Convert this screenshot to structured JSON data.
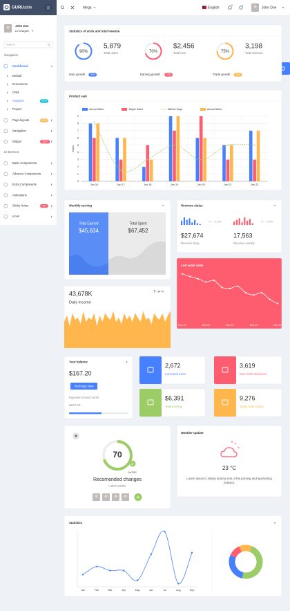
{
  "header": {
    "brand": "GURU",
    "brand_suffix": "able",
    "menu": "Mega",
    "language": "English",
    "user": "John Doe"
  },
  "sidebar": {
    "user_name": "John Doe",
    "user_role": "UI Designer",
    "search": "Search",
    "nav_title": "Navigation",
    "dashboard": "Dashboard",
    "dashboard_items": [
      {
        "label": "Default"
      },
      {
        "label": "Ecommerce"
      },
      {
        "label": "CRM"
      },
      {
        "label": "Analytics",
        "badge": "NEW",
        "badge_color": "#00bcd4"
      },
      {
        "label": "Project"
      }
    ],
    "nav_items": [
      {
        "label": "Page layouts",
        "badge": "NEW",
        "badge_color": "#ffb64d"
      },
      {
        "label": "Navigation"
      },
      {
        "label": "Widget",
        "badge": "100+",
        "badge_color": "#fe5d70"
      }
    ],
    "ui_title": "UI Element",
    "ui_items": [
      {
        "label": "Basic Components"
      },
      {
        "label": "Advance Components"
      },
      {
        "label": "Extra Components"
      },
      {
        "label": "Animations"
      },
      {
        "label": "Sticky Notes",
        "badge": "HOT",
        "badge_color": "#fe5d70"
      },
      {
        "label": "Icons"
      }
    ]
  },
  "stats": {
    "title": "Statistics of visits and total revenue",
    "items": [
      {
        "percent": 90,
        "percent_label": "90%",
        "value": "5,879",
        "label": "Total users",
        "color": "#4680ff"
      },
      {
        "percent": 70,
        "percent_label": "70%",
        "value": "$2,456",
        "label": "Total rent",
        "color": "#fe5d70"
      },
      {
        "percent": 75,
        "percent_label": "75%",
        "value": "3,198",
        "label": "Total revenue",
        "color": "#ffb64d"
      }
    ],
    "footer": [
      {
        "label": "User growth",
        "badge": "29%",
        "color": "#4680ff"
      },
      {
        "label": "Earning growth",
        "badge": "12%",
        "color": "#fe5d70"
      },
      {
        "label": "Trade growth",
        "badge": "10%",
        "color": "#ffb64d"
      }
    ]
  },
  "product_sale": {
    "type": "bar",
    "title": "Product sale",
    "y_label": "Sales",
    "categories": [
      "Jan 16",
      "Jan 17",
      "Jan 18",
      "Jan 19",
      "Jan 20",
      "Jan 21",
      "Jan 22"
    ],
    "series": [
      {
        "name": "Actual Sales",
        "color": "#4680ff",
        "values": [
          8,
          6,
          2,
          9,
          6,
          5,
          7
        ]
      },
      {
        "name": "Target Sales",
        "color": "#fe5d70",
        "values": [
          6,
          3,
          5,
          7,
          9,
          3,
          3
        ]
      },
      {
        "name": "Market Days",
        "color": "#9ccc65",
        "type": "line",
        "dashed": true,
        "values": [
          8.2,
          1.5,
          3,
          5,
          3,
          5,
          5
        ]
      },
      {
        "name": "Actual Sales",
        "color": "#ffb64d",
        "values": [
          8,
          6,
          3,
          9,
          6,
          5,
          7
        ]
      }
    ],
    "ylim": [
      0,
      9
    ],
    "yticks": [
      0,
      1,
      2,
      3,
      4,
      5,
      6,
      7,
      8,
      9
    ],
    "grid": true
  },
  "monthly_earning": {
    "title": "Monthly earning",
    "earned_label": "Total Earned",
    "earned": "$45,634",
    "spent_label": "Total Spent",
    "spent": "$67,452"
  },
  "revenue_status": {
    "title": "Revenue status",
    "daily": {
      "value": "$27,674",
      "label": "Revenue daily",
      "change": "+1.0%",
      "color": "#4680ff",
      "bars": [
        5,
        9,
        6,
        8,
        3,
        6,
        2,
        1
      ]
    },
    "weekly": {
      "value": "17,563",
      "label": "Revenue weekly",
      "change": "-0.9%",
      "color": "#fe5d70",
      "bars": [
        4,
        6,
        8,
        3,
        9,
        5,
        7,
        2
      ]
    },
    "ylim": [
      0,
      10
    ]
  },
  "last_week_sales": {
    "type": "line",
    "title": "Last week sales",
    "categories": [
      "Nov 19",
      null,
      null,
      "Nov 21",
      null,
      null,
      "Nov 23",
      null,
      null,
      "Nov 25",
      null,
      null,
      "Nov 27"
    ],
    "values": [
      8.5,
      8,
      7.6,
      7,
      7.3,
      6,
      5.8,
      6.2,
      5,
      4.6,
      5,
      3.8,
      3
    ],
    "ylim": [
      0,
      9
    ]
  },
  "daily_income": {
    "type": "area",
    "value": "43,678K",
    "label": "Daily Income",
    "change": "34 %",
    "color": "#ffb64d",
    "values": [
      6,
      7.5,
      5,
      8,
      6.5,
      7,
      5.5,
      8.5,
      6,
      7,
      6.5,
      8,
      5,
      7.5,
      6,
      8,
      7,
      6.5,
      8.5,
      6,
      7,
      5.5,
      8,
      6.5,
      7.5,
      6,
      8,
      7,
      6,
      8.5,
      6.5,
      7,
      5.5,
      8,
      7,
      6.5,
      8,
      6,
      7.5,
      8.5
    ],
    "ylim": [
      0,
      10
    ]
  },
  "balance": {
    "title": "Your balance",
    "value": "$167.20",
    "button": "Recharge Now",
    "note": "Payment of next month",
    "next": "$167.20",
    "progress": 55
  },
  "tiles": [
    {
      "value": "2,672",
      "label": "Last week users",
      "color": "#4680ff"
    },
    {
      "value": "3,619",
      "label": "New Order Recieved",
      "color": "#fe5d70"
    },
    {
      "value": "$6,391",
      "label": "Total earning",
      "color": "#9ccc65"
    },
    {
      "value": "9,276",
      "label": "Today New visitors",
      "color": "#ffb64d"
    }
  ],
  "recommended": {
    "value": 70,
    "more": "MORE",
    "title": "Recomended changes",
    "subtitle": "Latest update",
    "color": "#9ccc65"
  },
  "weather": {
    "title": "Weather Update",
    "temperature": "23 °C",
    "text": "Lorem ipsum is simply dummy text of the printing and typesetting industry."
  },
  "statistics": {
    "type": "line",
    "title": "Statistics",
    "categories": [
      "Jan",
      "Feb",
      "Mar",
      "Apr",
      "May",
      "Jun",
      "Jul",
      "Aug",
      "Sep"
    ],
    "values": [
      1.5,
      2.5,
      2,
      2,
      0.8,
      4,
      6.8,
      0.4,
      4.2
    ],
    "ylim": [
      0,
      7
    ],
    "color": "#4680ff",
    "donut": {
      "type": "pie",
      "values": [
        48,
        28,
        12,
        12
      ],
      "colors": [
        "#9ccc65",
        "#4680ff",
        "#fe5d70",
        "#ffb64d"
      ]
    }
  }
}
